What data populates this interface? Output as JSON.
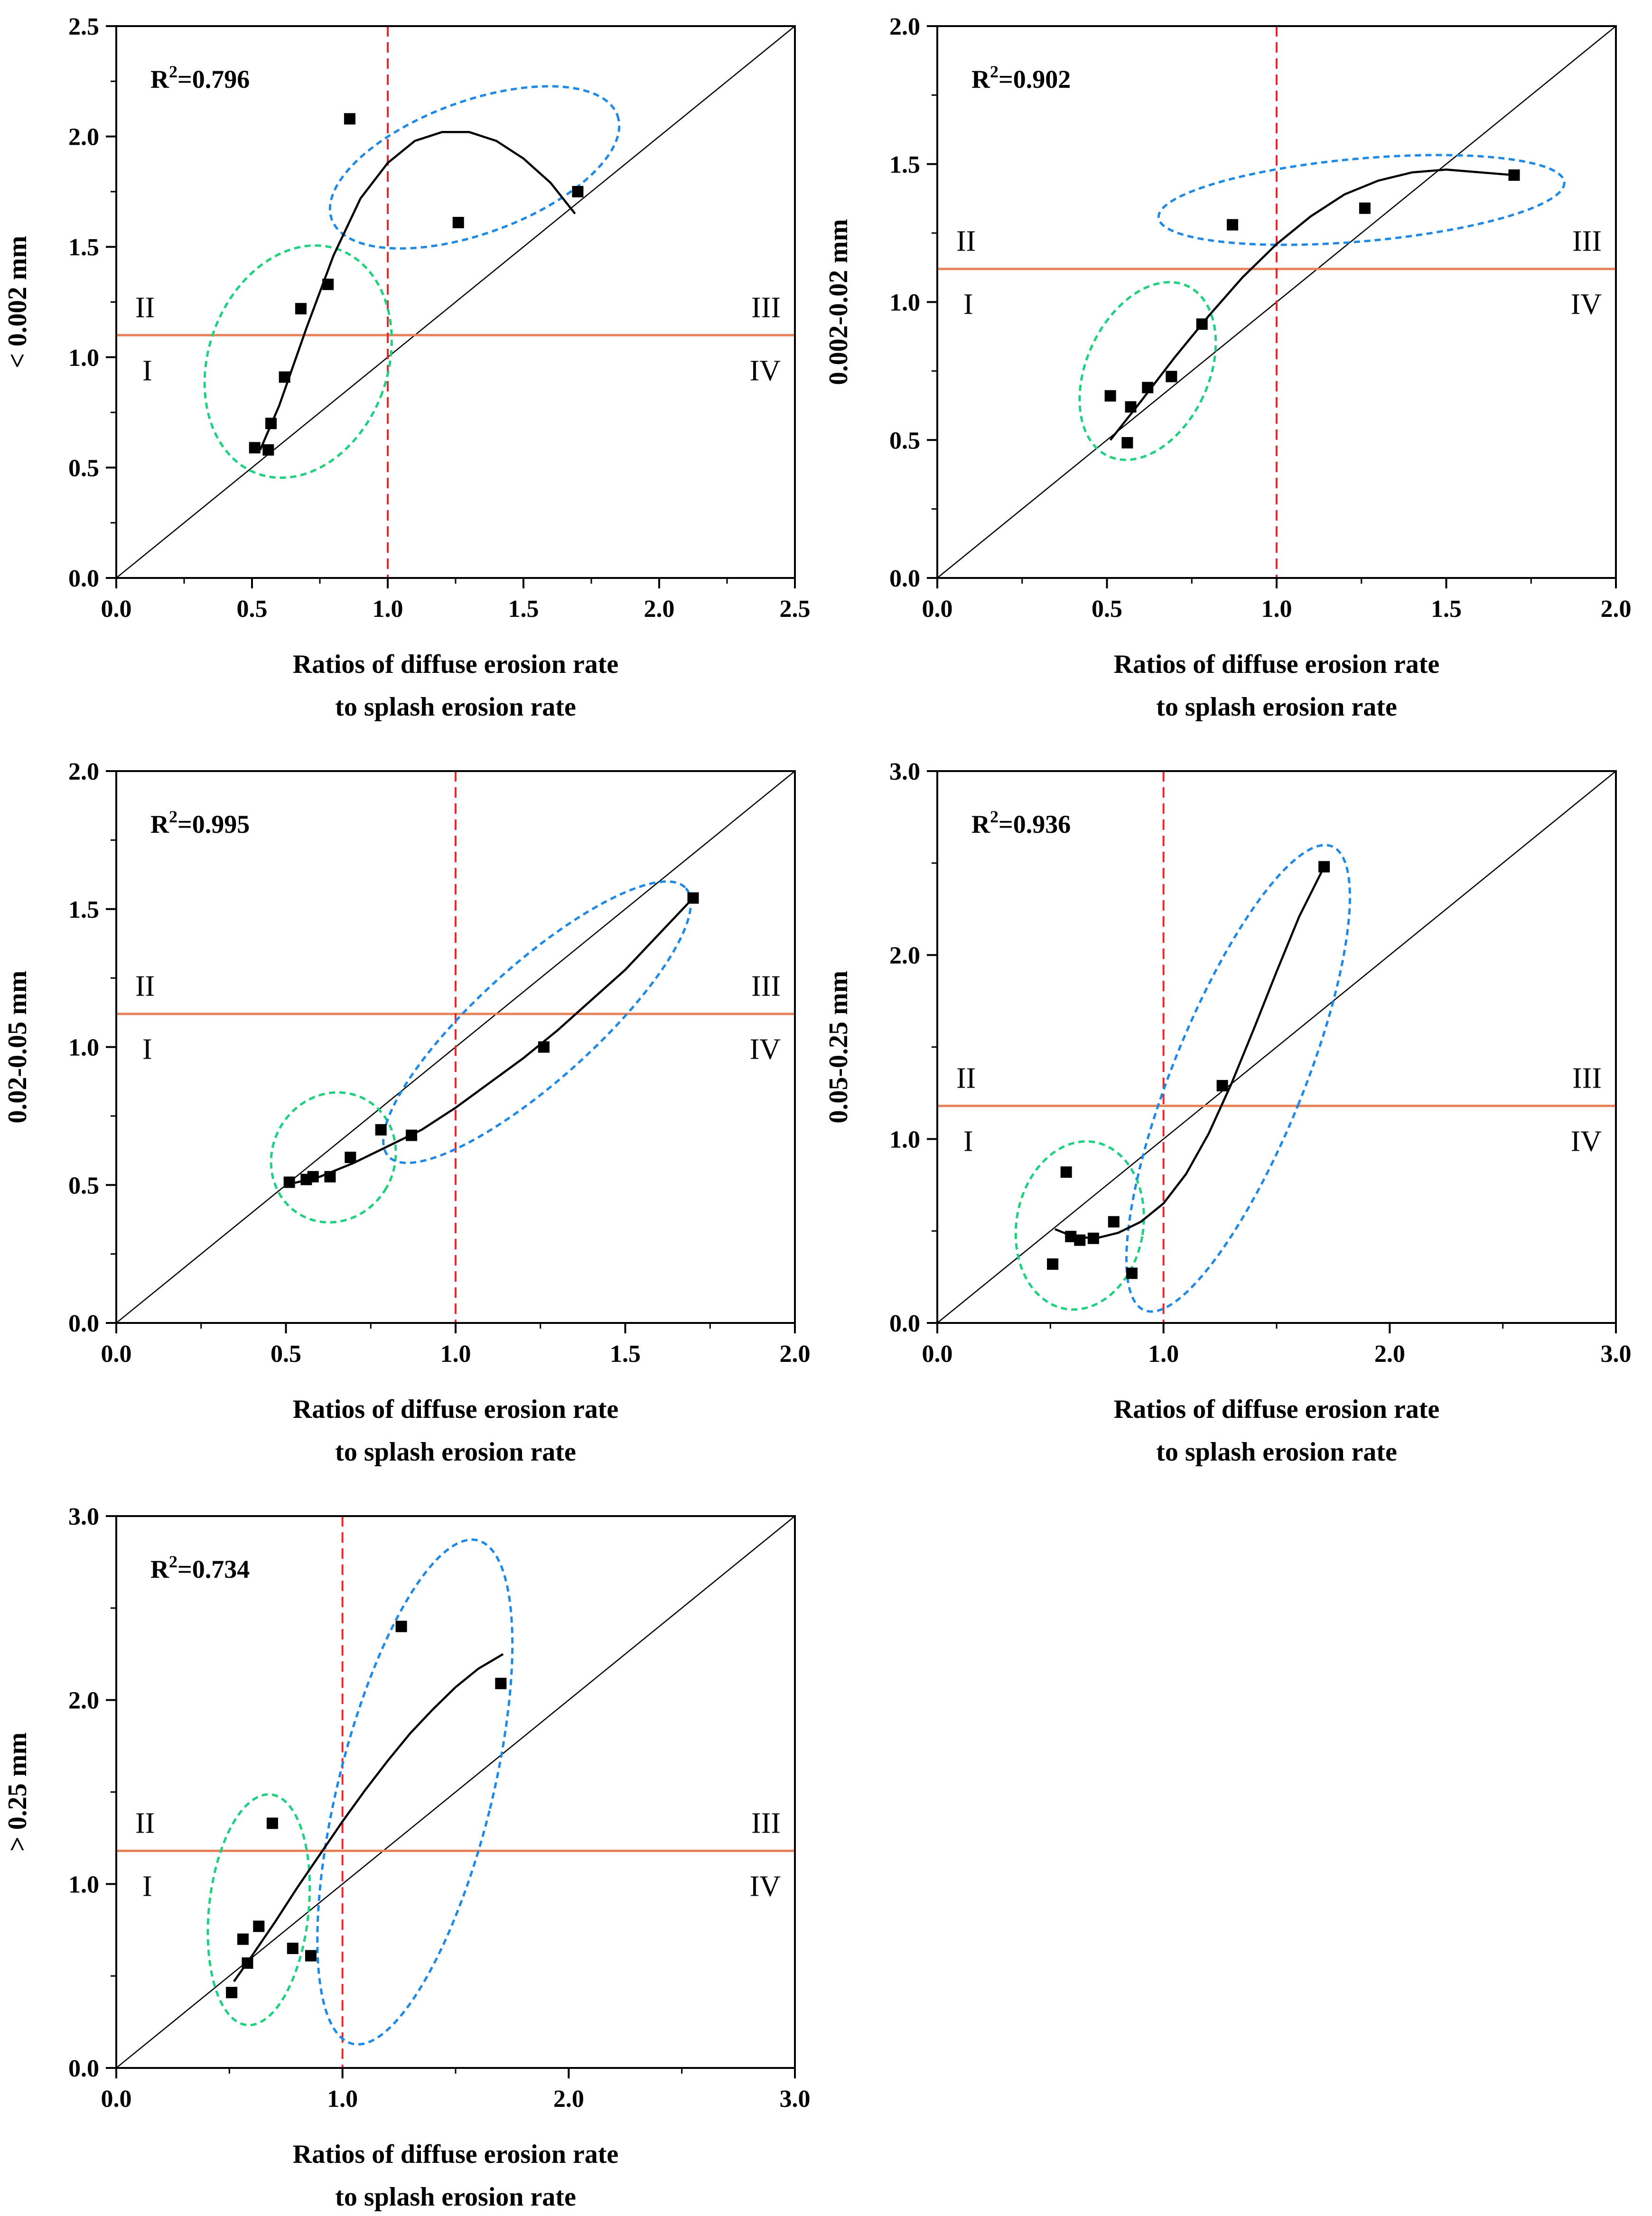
{
  "chart_data": [
    {
      "type": "scatter",
      "id": "p1",
      "ylabel": "< 0.002 mm",
      "xlabel_lines": [
        "Ratios of diffuse erosion rate",
        "to splash erosion rate"
      ],
      "r2_prefix": "R",
      "r2_sup": "2",
      "r2_value": "=0.796",
      "xlim": [
        0,
        2.5
      ],
      "ylim": [
        0,
        2.5
      ],
      "xticks": [
        "0.0",
        "0.5",
        "1.0",
        "1.5",
        "2.0",
        "2.5"
      ],
      "yticks": [
        "0.0",
        "0.5",
        "1.0",
        "1.5",
        "2.0",
        "2.5"
      ],
      "hline": 1.1,
      "vline": 1.0,
      "quadrants": [
        "I",
        "II",
        "III",
        "IV"
      ],
      "points": [
        [
          0.51,
          0.59
        ],
        [
          0.56,
          0.58
        ],
        [
          0.57,
          0.7
        ],
        [
          0.62,
          0.91
        ],
        [
          0.68,
          1.22
        ],
        [
          0.78,
          1.33
        ],
        [
          0.86,
          2.08
        ],
        [
          1.26,
          1.61
        ],
        [
          1.7,
          1.75
        ]
      ],
      "fit": [
        [
          0.53,
          0.58
        ],
        [
          0.6,
          0.78
        ],
        [
          0.7,
          1.13
        ],
        [
          0.8,
          1.46
        ],
        [
          0.9,
          1.72
        ],
        [
          1.0,
          1.88
        ],
        [
          1.1,
          1.98
        ],
        [
          1.2,
          2.02
        ],
        [
          1.3,
          2.02
        ],
        [
          1.4,
          1.98
        ],
        [
          1.5,
          1.9
        ],
        [
          1.6,
          1.79
        ],
        [
          1.69,
          1.65
        ]
      ],
      "ellipses": [
        {
          "group": "green",
          "cx": 0.67,
          "cy": 0.98,
          "rx": 0.33,
          "ry": 0.54,
          "angle": 20
        },
        {
          "group": "blue",
          "cx": 1.32,
          "cy": 1.86,
          "rx": 0.56,
          "ry": 0.3,
          "angle": -20
        }
      ]
    },
    {
      "type": "scatter",
      "id": "p2",
      "ylabel": "0.002-0.02 mm",
      "xlabel_lines": [
        "Ratios of diffuse erosion rate",
        "to splash erosion rate"
      ],
      "r2_prefix": "R",
      "r2_sup": "2",
      "r2_value": "=0.902",
      "xlim": [
        0,
        2.0
      ],
      "ylim": [
        0,
        2.0
      ],
      "xticks": [
        "0.0",
        "0.5",
        "1.0",
        "1.5",
        "2.0"
      ],
      "yticks": [
        "0.0",
        "0.5",
        "1.0",
        "1.5",
        "2.0"
      ],
      "hline": 1.12,
      "vline": 1.0,
      "quadrants": [
        "I",
        "II",
        "III",
        "IV"
      ],
      "points": [
        [
          0.51,
          0.66
        ],
        [
          0.56,
          0.49
        ],
        [
          0.57,
          0.62
        ],
        [
          0.62,
          0.69
        ],
        [
          0.69,
          0.73
        ],
        [
          0.78,
          0.92
        ],
        [
          0.87,
          1.28
        ],
        [
          1.26,
          1.34
        ],
        [
          1.7,
          1.46
        ]
      ],
      "fit": [
        [
          0.51,
          0.5
        ],
        [
          0.6,
          0.64
        ],
        [
          0.7,
          0.8
        ],
        [
          0.8,
          0.95
        ],
        [
          0.9,
          1.09
        ],
        [
          1.0,
          1.21
        ],
        [
          1.1,
          1.31
        ],
        [
          1.2,
          1.39
        ],
        [
          1.3,
          1.44
        ],
        [
          1.4,
          1.47
        ],
        [
          1.5,
          1.48
        ],
        [
          1.6,
          1.47
        ],
        [
          1.7,
          1.46
        ]
      ],
      "ellipses": [
        {
          "group": "green",
          "cx": 0.62,
          "cy": 0.75,
          "rx": 0.18,
          "ry": 0.34,
          "angle": 25
        },
        {
          "group": "blue",
          "cx": 1.25,
          "cy": 1.37,
          "rx": 0.6,
          "ry": 0.15,
          "angle": -5
        }
      ]
    },
    {
      "type": "scatter",
      "id": "p3",
      "ylabel": "0.02-0.05 mm",
      "xlabel_lines": [
        "Ratios of diffuse erosion rate",
        "to splash erosion rate"
      ],
      "r2_prefix": "R",
      "r2_sup": "2",
      "r2_value": "=0.995",
      "xlim": [
        0,
        2.0
      ],
      "ylim": [
        0,
        2.0
      ],
      "xticks": [
        "0.0",
        "0.5",
        "1.0",
        "1.5",
        "2.0"
      ],
      "yticks": [
        "0.0",
        "0.5",
        "1.0",
        "1.5",
        "2.0"
      ],
      "hline": 1.12,
      "vline": 1.0,
      "quadrants": [
        "I",
        "II",
        "III",
        "IV"
      ],
      "points": [
        [
          0.51,
          0.51
        ],
        [
          0.56,
          0.52
        ],
        [
          0.58,
          0.53
        ],
        [
          0.63,
          0.53
        ],
        [
          0.69,
          0.6
        ],
        [
          0.78,
          0.7
        ],
        [
          0.87,
          0.68
        ],
        [
          1.26,
          1.0
        ],
        [
          1.7,
          1.54
        ]
      ],
      "fit": [
        [
          0.5,
          0.5
        ],
        [
          0.6,
          0.53
        ],
        [
          0.7,
          0.58
        ],
        [
          0.8,
          0.64
        ],
        [
          0.9,
          0.7
        ],
        [
          1.0,
          0.78
        ],
        [
          1.1,
          0.87
        ],
        [
          1.2,
          0.96
        ],
        [
          1.3,
          1.06
        ],
        [
          1.4,
          1.17
        ],
        [
          1.5,
          1.28
        ],
        [
          1.6,
          1.41
        ],
        [
          1.7,
          1.54
        ]
      ],
      "ellipses": [
        {
          "group": "green",
          "cx": 0.64,
          "cy": 0.6,
          "rx": 0.18,
          "ry": 0.24,
          "angle": 30
        },
        {
          "group": "blue",
          "cx": 1.24,
          "cy": 1.09,
          "rx": 0.59,
          "ry": 0.21,
          "angle": -42
        }
      ]
    },
    {
      "type": "scatter",
      "id": "p4",
      "ylabel": "0.05-0.25 mm",
      "xlabel_lines": [
        "Ratios of diffuse erosion rate",
        "to splash erosion rate"
      ],
      "r2_prefix": "R",
      "r2_sup": "2",
      "r2_value": "=0.936",
      "xlim": [
        0,
        3.0
      ],
      "ylim": [
        0,
        3.0
      ],
      "xticks": [
        "0.0",
        "1.0",
        "2.0",
        "3.0"
      ],
      "yticks": [
        "0.0",
        "1.0",
        "2.0",
        "3.0"
      ],
      "hline": 1.18,
      "vline": 1.0,
      "quadrants": [
        "I",
        "II",
        "III",
        "IV"
      ],
      "points": [
        [
          0.51,
          0.32
        ],
        [
          0.57,
          0.82
        ],
        [
          0.59,
          0.47
        ],
        [
          0.63,
          0.45
        ],
        [
          0.69,
          0.46
        ],
        [
          0.78,
          0.55
        ],
        [
          0.86,
          0.27
        ],
        [
          1.26,
          1.29
        ],
        [
          1.71,
          2.48
        ]
      ],
      "fit": [
        [
          0.52,
          0.51
        ],
        [
          0.6,
          0.47
        ],
        [
          0.7,
          0.46
        ],
        [
          0.8,
          0.49
        ],
        [
          0.9,
          0.55
        ],
        [
          1.0,
          0.65
        ],
        [
          1.1,
          0.81
        ],
        [
          1.2,
          1.03
        ],
        [
          1.3,
          1.3
        ],
        [
          1.4,
          1.6
        ],
        [
          1.5,
          1.91
        ],
        [
          1.6,
          2.21
        ],
        [
          1.71,
          2.48
        ]
      ],
      "ellipses": [
        {
          "group": "green",
          "cx": 0.63,
          "cy": 0.53,
          "rx": 0.28,
          "ry": 0.46,
          "angle": 10
        },
        {
          "group": "blue",
          "cx": 1.33,
          "cy": 1.33,
          "rx": 0.29,
          "ry": 1.36,
          "angle": 22
        }
      ]
    },
    {
      "type": "scatter",
      "id": "p5",
      "ylabel": "> 0.25 mm",
      "xlabel_lines": [
        "Ratios of diffuse erosion rate",
        "to splash erosion rate"
      ],
      "r2_prefix": "R",
      "r2_sup": "2",
      "r2_value": "=0.734",
      "xlim": [
        0,
        3.0
      ],
      "ylim": [
        0,
        3.0
      ],
      "xticks": [
        "0.0",
        "1.0",
        "2.0",
        "3.0"
      ],
      "yticks": [
        "0.0",
        "1.0",
        "2.0",
        "3.0"
      ],
      "hline": 1.18,
      "vline": 1.0,
      "quadrants": [
        "I",
        "II",
        "III",
        "IV"
      ],
      "points": [
        [
          0.51,
          0.41
        ],
        [
          0.56,
          0.7
        ],
        [
          0.58,
          0.57
        ],
        [
          0.63,
          0.77
        ],
        [
          0.69,
          1.33
        ],
        [
          0.78,
          0.65
        ],
        [
          0.86,
          0.61
        ],
        [
          1.26,
          2.4
        ],
        [
          1.7,
          2.09
        ]
      ],
      "fit": [
        [
          0.52,
          0.47
        ],
        [
          0.6,
          0.61
        ],
        [
          0.7,
          0.79
        ],
        [
          0.8,
          0.98
        ],
        [
          0.9,
          1.16
        ],
        [
          1.0,
          1.34
        ],
        [
          1.1,
          1.51
        ],
        [
          1.2,
          1.67
        ],
        [
          1.3,
          1.82
        ],
        [
          1.4,
          1.95
        ],
        [
          1.5,
          2.07
        ],
        [
          1.6,
          2.17
        ],
        [
          1.71,
          2.25
        ]
      ],
      "ellipses": [
        {
          "group": "green",
          "cx": 0.63,
          "cy": 0.86,
          "rx": 0.22,
          "ry": 0.63,
          "angle": 6
        },
        {
          "group": "blue",
          "cx": 1.32,
          "cy": 1.5,
          "rx": 0.34,
          "ry": 1.41,
          "angle": 14
        }
      ]
    }
  ],
  "colors": {
    "axis": "#000000",
    "points": "#000000",
    "fit": "#000000",
    "diagonal": "#000000",
    "hline": "#e8825a",
    "vline": "#e8262c",
    "ellipse_green": "#1fd07e",
    "ellipse_blue": "#1e8ae6"
  }
}
